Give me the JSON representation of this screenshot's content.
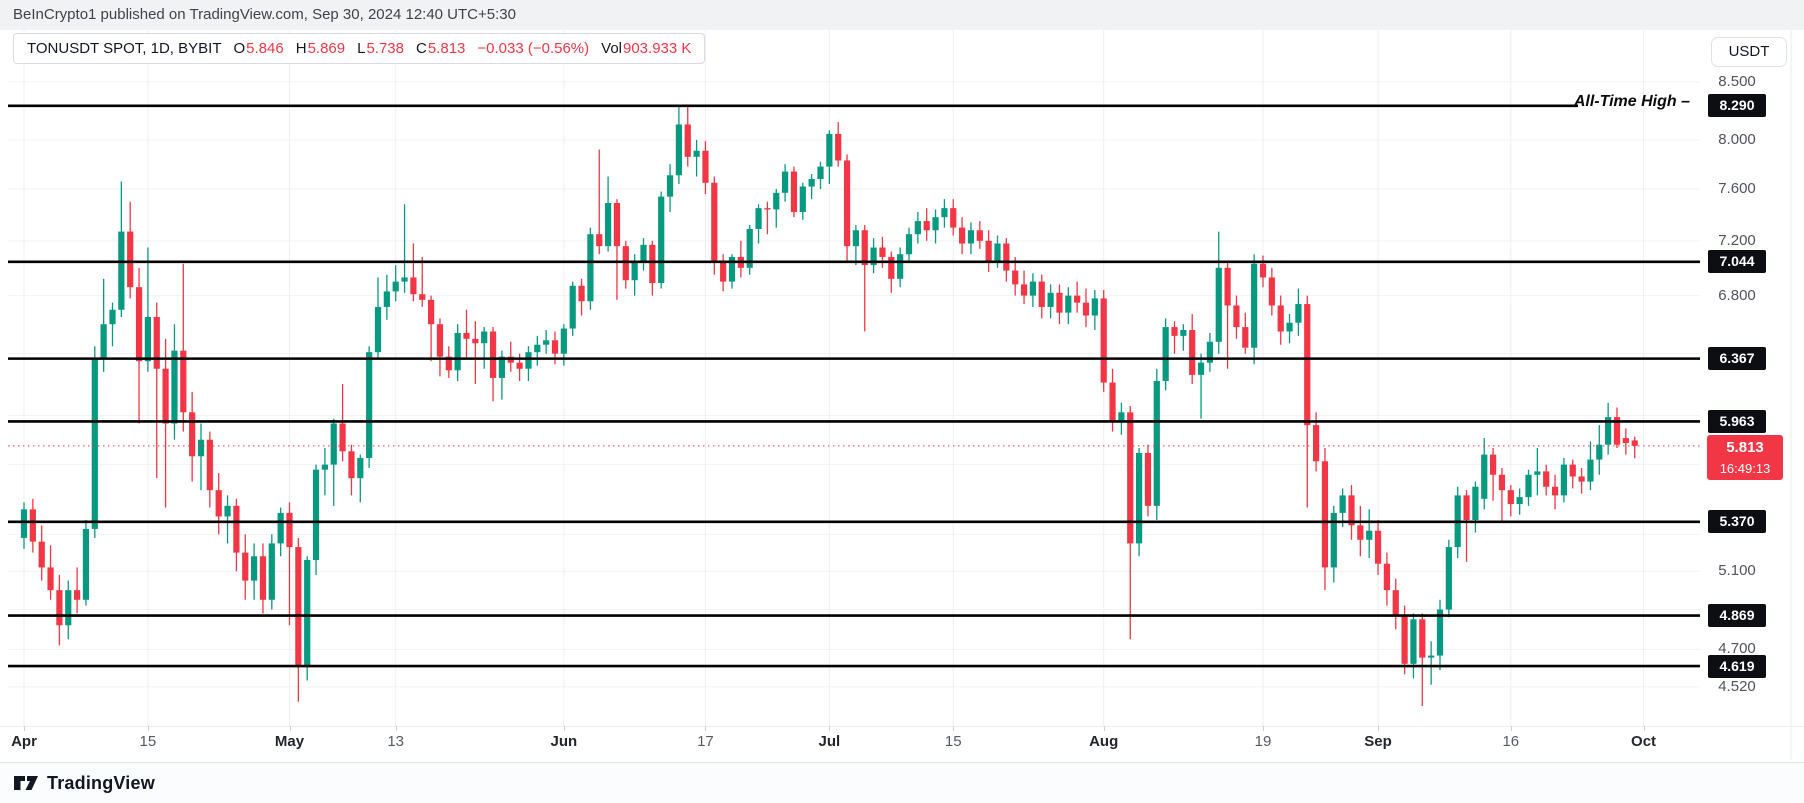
{
  "header": {
    "text": "BeInCrypto1 published on TradingView.com, Sep 30, 2024 12:40 UTC+5:30"
  },
  "legend": {
    "symbol": "TONUSDT SPOT, 1D, BYBIT",
    "o_label": "O",
    "o_value": "5.846",
    "h_label": "H",
    "h_value": "5.869",
    "l_label": "L",
    "l_value": "5.738",
    "c_label": "C",
    "c_value": "5.813",
    "change": "−0.033 (−0.56%)",
    "vol_label": "Vol",
    "vol_value": "903.933 K"
  },
  "ath_label": "All-Time High –",
  "price_axis": {
    "currency": "USDT",
    "ticks": [
      {
        "label": "8.500",
        "price": 8.5
      },
      {
        "label": "8.000",
        "price": 8.0
      },
      {
        "label": "7.600",
        "price": 7.6
      },
      {
        "label": "7.200",
        "price": 7.2
      },
      {
        "label": "6.800",
        "price": 6.8
      },
      {
        "label": "5.100",
        "price": 5.1
      },
      {
        "label": "4.700",
        "price": 4.7
      },
      {
        "label": "4.520",
        "price": 4.52
      }
    ],
    "levels": [
      {
        "label": "8.290",
        "price": 8.29
      },
      {
        "label": "7.044",
        "price": 7.044
      },
      {
        "label": "6.367",
        "price": 6.367
      },
      {
        "label": "5.963",
        "price": 5.963
      },
      {
        "label": "5.370",
        "price": 5.37
      },
      {
        "label": "4.869",
        "price": 4.869
      },
      {
        "label": "4.619",
        "price": 4.619
      }
    ],
    "current": {
      "label": "5.813",
      "price": 5.813,
      "countdown": "16:49:13"
    }
  },
  "time_axis": [
    {
      "text": "Apr",
      "day": 0,
      "month": true
    },
    {
      "text": "15",
      "day": 14,
      "month": false
    },
    {
      "text": "May",
      "day": 30,
      "month": true
    },
    {
      "text": "13",
      "day": 42,
      "month": false
    },
    {
      "text": "Jun",
      "day": 61,
      "month": true
    },
    {
      "text": "17",
      "day": 77,
      "month": false
    },
    {
      "text": "Jul",
      "day": 91,
      "month": true
    },
    {
      "text": "15",
      "day": 105,
      "month": false
    },
    {
      "text": "Aug",
      "day": 122,
      "month": true
    },
    {
      "text": "19",
      "day": 140,
      "month": false
    },
    {
      "text": "Sep",
      "day": 153,
      "month": true
    },
    {
      "text": "16",
      "day": 168,
      "month": false
    },
    {
      "text": "Oct",
      "day": 183,
      "month": true
    }
  ],
  "footer": {
    "brand": "TradingView"
  },
  "colors": {
    "up": "#089981",
    "down": "#F23645",
    "level_line": "#000000",
    "badge_bg": "#0d0e12",
    "badge_text": "#ffffff",
    "current_bg": "#F23645",
    "grid_h": "#f0f2f5",
    "grid_v": "#edeff3",
    "edge_line": "#e9ebef"
  },
  "chart_data": {
    "type": "candlestick",
    "symbol": "TONUSDT",
    "interval": "1D",
    "exchange": "BYBIT",
    "scale": "log",
    "price_range": [
      4.35,
      8.62
    ],
    "x_labels": [
      "Apr",
      "15",
      "May",
      "13",
      "Jun",
      "17",
      "Jul",
      "15",
      "Aug",
      "19",
      "Sep",
      "16",
      "Oct"
    ],
    "horizontal_levels": [
      8.29,
      7.044,
      6.367,
      5.963,
      5.37,
      4.869,
      4.619
    ],
    "current_price": 5.813,
    "minor_grid_prices": [
      6.4,
      6.0,
      5.7,
      5.3,
      4.9
    ],
    "candles": [
      [
        5.28,
        5.48,
        5.22,
        5.44
      ],
      [
        5.44,
        5.5,
        5.2,
        5.26
      ],
      [
        5.26,
        5.35,
        5.05,
        5.12
      ],
      [
        5.12,
        5.24,
        4.95,
        5.0
      ],
      [
        5.0,
        5.08,
        4.72,
        4.82
      ],
      [
        4.82,
        5.05,
        4.75,
        5.0
      ],
      [
        5.0,
        5.12,
        4.88,
        4.95
      ],
      [
        4.95,
        5.38,
        4.92,
        5.33
      ],
      [
        5.33,
        6.45,
        5.28,
        6.37
      ],
      [
        6.37,
        6.92,
        6.28,
        6.6
      ],
      [
        6.6,
        6.75,
        6.45,
        6.7
      ],
      [
        6.7,
        7.66,
        6.65,
        7.27
      ],
      [
        7.27,
        7.5,
        6.78,
        6.86
      ],
      [
        6.86,
        7.0,
        5.95,
        6.35
      ],
      [
        6.35,
        7.15,
        6.28,
        6.65
      ],
      [
        6.65,
        6.75,
        5.62,
        6.3
      ],
      [
        6.3,
        6.5,
        5.45,
        5.95
      ],
      [
        5.95,
        6.6,
        5.85,
        6.42
      ],
      [
        6.42,
        7.03,
        5.9,
        6.02
      ],
      [
        6.02,
        6.15,
        5.6,
        5.75
      ],
      [
        5.75,
        5.95,
        5.55,
        5.85
      ],
      [
        5.85,
        5.9,
        5.45,
        5.55
      ],
      [
        5.55,
        5.65,
        5.3,
        5.4
      ],
      [
        5.4,
        5.52,
        5.25,
        5.46
      ],
      [
        5.46,
        5.5,
        5.1,
        5.2
      ],
      [
        5.2,
        5.3,
        4.95,
        5.05
      ],
      [
        5.05,
        5.25,
        4.95,
        5.18
      ],
      [
        5.18,
        5.25,
        4.88,
        4.95
      ],
      [
        4.95,
        5.3,
        4.9,
        5.25
      ],
      [
        5.25,
        5.45,
        5.18,
        5.42
      ],
      [
        5.42,
        5.48,
        4.82,
        5.23
      ],
      [
        5.23,
        5.28,
        4.45,
        4.62
      ],
      [
        4.62,
        5.18,
        4.55,
        5.16
      ],
      [
        5.16,
        5.7,
        5.08,
        5.67
      ],
      [
        5.67,
        5.8,
        5.52,
        5.7
      ],
      [
        5.7,
        5.98,
        5.46,
        5.95
      ],
      [
        5.95,
        6.2,
        5.72,
        5.78
      ],
      [
        5.78,
        5.82,
        5.52,
        5.62
      ],
      [
        5.62,
        5.76,
        5.48,
        5.74
      ],
      [
        5.74,
        6.45,
        5.68,
        6.41
      ],
      [
        6.41,
        6.93,
        6.36,
        6.72
      ],
      [
        6.72,
        6.95,
        6.63,
        6.83
      ],
      [
        6.83,
        7.02,
        6.76,
        6.9
      ],
      [
        6.9,
        7.48,
        6.82,
        6.93
      ],
      [
        6.93,
        7.18,
        6.76,
        6.81
      ],
      [
        6.81,
        7.08,
        6.72,
        6.77
      ],
      [
        6.77,
        6.8,
        6.35,
        6.6
      ],
      [
        6.6,
        6.64,
        6.25,
        6.38
      ],
      [
        6.38,
        6.45,
        6.24,
        6.29
      ],
      [
        6.29,
        6.6,
        6.22,
        6.54
      ],
      [
        6.54,
        6.7,
        6.37,
        6.5
      ],
      [
        6.5,
        6.62,
        6.2,
        6.47
      ],
      [
        6.47,
        6.58,
        6.3,
        6.55
      ],
      [
        6.55,
        6.58,
        6.09,
        6.24
      ],
      [
        6.24,
        6.42,
        6.1,
        6.38
      ],
      [
        6.38,
        6.48,
        6.28,
        6.34
      ],
      [
        6.34,
        6.4,
        6.22,
        6.3
      ],
      [
        6.3,
        6.45,
        6.22,
        6.41
      ],
      [
        6.41,
        6.52,
        6.32,
        6.46
      ],
      [
        6.46,
        6.56,
        6.4,
        6.49
      ],
      [
        6.49,
        6.55,
        6.33,
        6.4
      ],
      [
        6.4,
        6.6,
        6.32,
        6.57
      ],
      [
        6.57,
        6.9,
        6.52,
        6.87
      ],
      [
        6.87,
        6.92,
        6.66,
        6.76
      ],
      [
        6.76,
        7.3,
        6.7,
        7.25
      ],
      [
        7.25,
        7.92,
        7.1,
        7.16
      ],
      [
        7.16,
        7.7,
        7.12,
        7.49
      ],
      [
        7.49,
        7.52,
        6.77,
        7.16
      ],
      [
        7.16,
        7.2,
        6.85,
        6.91
      ],
      [
        6.91,
        7.1,
        6.8,
        7.04
      ],
      [
        7.04,
        7.22,
        6.98,
        7.17
      ],
      [
        7.17,
        7.2,
        6.8,
        6.89
      ],
      [
        6.89,
        7.58,
        6.85,
        7.54
      ],
      [
        7.54,
        7.8,
        7.42,
        7.71
      ],
      [
        7.71,
        8.28,
        7.64,
        8.13
      ],
      [
        8.13,
        8.29,
        7.78,
        7.86
      ],
      [
        7.86,
        8.0,
        7.7,
        7.91
      ],
      [
        7.91,
        7.99,
        7.56,
        7.65
      ],
      [
        7.65,
        7.7,
        6.95,
        7.05
      ],
      [
        7.05,
        7.1,
        6.83,
        6.9
      ],
      [
        6.9,
        7.1,
        6.85,
        7.08
      ],
      [
        7.08,
        7.2,
        6.93,
        7.0
      ],
      [
        7.0,
        7.32,
        6.95,
        7.29
      ],
      [
        7.29,
        7.48,
        7.18,
        7.45
      ],
      [
        7.45,
        7.5,
        7.25,
        7.44
      ],
      [
        7.44,
        7.6,
        7.3,
        7.57
      ],
      [
        7.57,
        7.8,
        7.5,
        7.74
      ],
      [
        7.74,
        7.78,
        7.38,
        7.42
      ],
      [
        7.42,
        7.65,
        7.36,
        7.62
      ],
      [
        7.62,
        7.72,
        7.52,
        7.68
      ],
      [
        7.68,
        7.82,
        7.6,
        7.78
      ],
      [
        7.78,
        8.08,
        7.64,
        8.05
      ],
      [
        8.05,
        8.15,
        7.78,
        7.83
      ],
      [
        7.83,
        7.88,
        7.05,
        7.16
      ],
      [
        7.16,
        7.32,
        7.02,
        7.28
      ],
      [
        7.28,
        7.32,
        6.55,
        7.02
      ],
      [
        7.02,
        7.22,
        6.96,
        7.15
      ],
      [
        7.15,
        7.23,
        7.0,
        7.08
      ],
      [
        7.08,
        7.12,
        6.82,
        6.92
      ],
      [
        6.92,
        7.15,
        6.86,
        7.1
      ],
      [
        7.1,
        7.3,
        7.04,
        7.25
      ],
      [
        7.25,
        7.42,
        7.18,
        7.35
      ],
      [
        7.35,
        7.45,
        7.2,
        7.28
      ],
      [
        7.28,
        7.44,
        7.18,
        7.38
      ],
      [
        7.38,
        7.52,
        7.3,
        7.45
      ],
      [
        7.45,
        7.52,
        7.24,
        7.3
      ],
      [
        7.3,
        7.38,
        7.1,
        7.18
      ],
      [
        7.18,
        7.34,
        7.1,
        7.28
      ],
      [
        7.28,
        7.35,
        7.14,
        7.2
      ],
      [
        7.2,
        7.28,
        6.97,
        7.05
      ],
      [
        7.05,
        7.24,
        7.0,
        7.18
      ],
      [
        7.18,
        7.22,
        6.9,
        6.98
      ],
      [
        6.98,
        7.08,
        6.8,
        6.88
      ],
      [
        6.88,
        6.98,
        6.74,
        6.8
      ],
      [
        6.8,
        6.96,
        6.72,
        6.9
      ],
      [
        6.9,
        6.95,
        6.64,
        6.72
      ],
      [
        6.72,
        6.88,
        6.64,
        6.82
      ],
      [
        6.82,
        6.88,
        6.6,
        6.68
      ],
      [
        6.68,
        6.86,
        6.6,
        6.8
      ],
      [
        6.8,
        6.9,
        6.68,
        6.75
      ],
      [
        6.75,
        6.85,
        6.58,
        6.66
      ],
      [
        6.66,
        6.84,
        6.56,
        6.78
      ],
      [
        6.78,
        6.84,
        6.15,
        6.21
      ],
      [
        6.21,
        6.3,
        5.9,
        5.97
      ],
      [
        5.97,
        6.08,
        5.88,
        6.02
      ],
      [
        6.02,
        6.06,
        4.75,
        5.25
      ],
      [
        5.25,
        5.8,
        5.18,
        5.77
      ],
      [
        5.77,
        5.82,
        5.4,
        5.46
      ],
      [
        5.46,
        6.3,
        5.38,
        6.22
      ],
      [
        6.22,
        6.64,
        6.16,
        6.58
      ],
      [
        6.58,
        6.62,
        6.4,
        6.52
      ],
      [
        6.52,
        6.6,
        6.42,
        6.56
      ],
      [
        6.56,
        6.67,
        6.2,
        6.26
      ],
      [
        6.26,
        6.4,
        5.98,
        6.34
      ],
      [
        6.34,
        6.54,
        6.28,
        6.48
      ],
      [
        6.48,
        7.27,
        6.4,
        7.0
      ],
      [
        7.0,
        7.05,
        6.3,
        6.73
      ],
      [
        6.73,
        6.8,
        6.5,
        6.58
      ],
      [
        6.58,
        6.68,
        6.4,
        6.44
      ],
      [
        6.44,
        7.1,
        6.33,
        7.03
      ],
      [
        7.03,
        7.09,
        6.86,
        6.93
      ],
      [
        6.93,
        7.0,
        6.66,
        6.73
      ],
      [
        6.73,
        6.8,
        6.46,
        6.55
      ],
      [
        6.55,
        6.67,
        6.47,
        6.61
      ],
      [
        6.61,
        6.85,
        6.52,
        6.74
      ],
      [
        6.74,
        6.8,
        5.45,
        5.94
      ],
      [
        5.94,
        6.02,
        5.66,
        5.72
      ],
      [
        5.72,
        5.8,
        5.0,
        5.12
      ],
      [
        5.12,
        5.46,
        5.04,
        5.42
      ],
      [
        5.42,
        5.56,
        5.34,
        5.52
      ],
      [
        5.52,
        5.58,
        5.27,
        5.35
      ],
      [
        5.35,
        5.46,
        5.18,
        5.27
      ],
      [
        5.27,
        5.44,
        5.17,
        5.32
      ],
      [
        5.32,
        5.38,
        5.08,
        5.14
      ],
      [
        5.14,
        5.2,
        4.92,
        5.0
      ],
      [
        5.0,
        5.06,
        4.8,
        4.87
      ],
      [
        4.87,
        4.92,
        4.58,
        4.63
      ],
      [
        4.63,
        4.88,
        4.56,
        4.85
      ],
      [
        4.85,
        4.88,
        4.43,
        4.66
      ],
      [
        4.66,
        4.74,
        4.53,
        4.67
      ],
      [
        4.67,
        4.95,
        4.6,
        4.9
      ],
      [
        4.9,
        5.27,
        4.86,
        5.23
      ],
      [
        5.23,
        5.57,
        5.17,
        5.52
      ],
      [
        5.52,
        5.55,
        5.15,
        5.38
      ],
      [
        5.38,
        5.6,
        5.31,
        5.57
      ],
      [
        5.5,
        5.86,
        5.44,
        5.76
      ],
      [
        5.76,
        5.8,
        5.49,
        5.64
      ],
      [
        5.64,
        5.68,
        5.37,
        5.55
      ],
      [
        5.55,
        5.58,
        5.4,
        5.47
      ],
      [
        5.47,
        5.56,
        5.41,
        5.51
      ],
      [
        5.51,
        5.67,
        5.46,
        5.64
      ],
      [
        5.64,
        5.8,
        5.52,
        5.66
      ],
      [
        5.66,
        5.7,
        5.52,
        5.57
      ],
      [
        5.57,
        5.64,
        5.44,
        5.52
      ],
      [
        5.52,
        5.74,
        5.48,
        5.7
      ],
      [
        5.7,
        5.73,
        5.56,
        5.63
      ],
      [
        5.63,
        5.68,
        5.53,
        5.6
      ],
      [
        5.6,
        5.84,
        5.55,
        5.73
      ],
      [
        5.73,
        5.94,
        5.64,
        5.82
      ],
      [
        5.82,
        6.08,
        5.76,
        5.99
      ],
      [
        5.99,
        6.05,
        5.8,
        5.82
      ],
      [
        5.86,
        5.92,
        5.76,
        5.83
      ],
      [
        5.846,
        5.869,
        5.738,
        5.813
      ]
    ]
  }
}
